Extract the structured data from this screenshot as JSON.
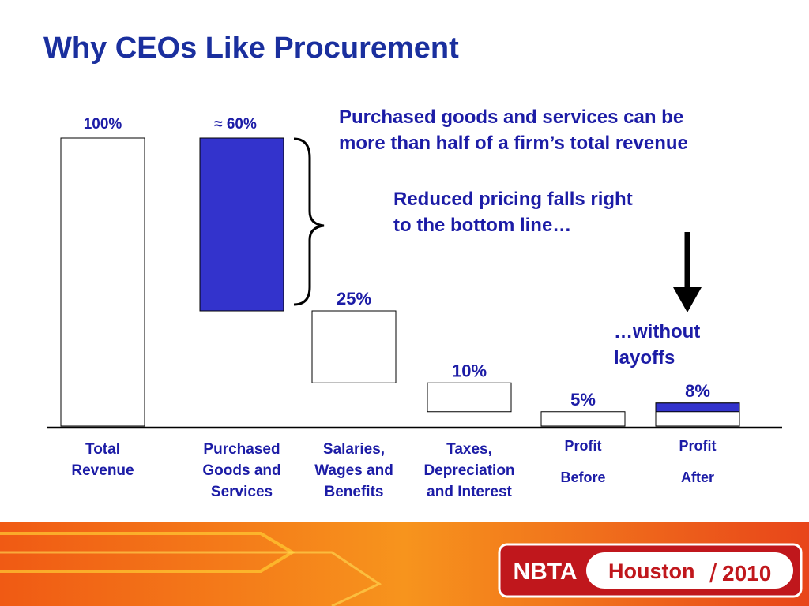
{
  "chart_data": {
    "type": "waterfall",
    "title": "Why CEOs Like Procurement",
    "categories": [
      "Total Revenue",
      "Purchased Goods and Services",
      "Salaries, Wages and Benefits",
      "Taxes, Depreciation and Interest",
      "Profit Before",
      "Profit After"
    ],
    "values": [
      100,
      60,
      25,
      10,
      5,
      8
    ],
    "value_labels": [
      "100%",
      "≈ 60%",
      "25%",
      "10%",
      "5%",
      "8%"
    ],
    "measure": [
      "absolute",
      "decrease",
      "decrease",
      "decrease",
      "absolute",
      "absolute"
    ],
    "colors": [
      "#ffffff",
      "#3333cc",
      "#ffffff",
      "#ffffff",
      "#ffffff",
      "#ffffff"
    ],
    "gain_color": "#3333cc",
    "ylim": [
      0,
      100
    ],
    "annotations": [
      "Purchased goods and services can be more than half of a firm’s total revenue",
      "Reduced pricing falls right to the bottom line…",
      "…without layoffs"
    ]
  },
  "footer": {
    "logo": [
      "NBTA",
      "Houston",
      "/",
      "2010"
    ]
  }
}
